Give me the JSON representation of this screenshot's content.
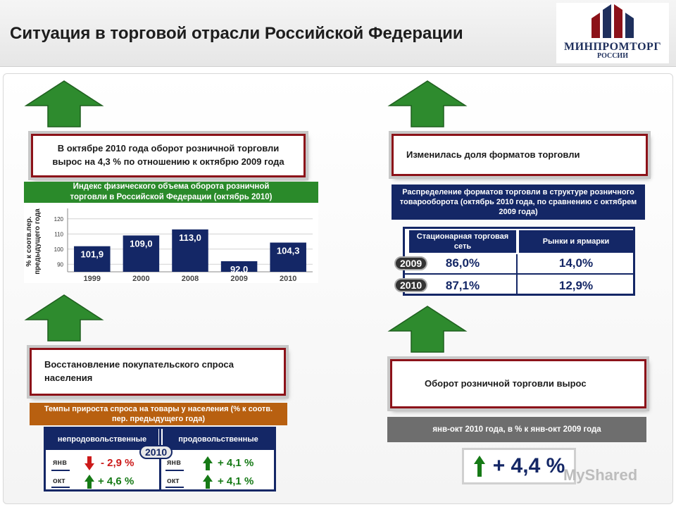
{
  "header": {
    "title": "Ситуация в торговой отрасли Российской Федерации",
    "logo_text": "МИНПРОМТОРГ",
    "logo_sub": "РОССИИ"
  },
  "colors": {
    "callout_border": "#8c1219",
    "navy": "#142766",
    "green_arrow": "#2e8b2e",
    "red": "#cc1a1a",
    "green": "#167a16"
  },
  "top_left": {
    "callout": "В октябре 2010 года оборот розничной торговли вырос на 4,3 % по отношению к октябрю 2009 года",
    "subheader": "Индекс физического объема оборота розничной торговли в Российской Федерации (октябрь 2010)"
  },
  "chart_data": {
    "type": "bar",
    "categories": [
      "1999",
      "2000",
      "2008",
      "2009",
      "2010"
    ],
    "values": [
      101.9,
      109.0,
      113.0,
      92.0,
      104.3
    ],
    "value_labels": [
      "101,9",
      "109,0",
      "113,0",
      "92,0",
      "104,3"
    ],
    "ylabel": "% к соотв.пер. предыдущего года",
    "yticks": [
      90,
      100,
      110,
      120
    ],
    "ylim": [
      85,
      125
    ],
    "grid": true
  },
  "top_right": {
    "callout": "Изменилась доля форматов торговли",
    "subheader": "Распределение форматов торговли в структуре розничного товарооборота (октябрь 2010 года, по сравнению с октябрем 2009 года)",
    "columns": [
      "Стационарная торговая сеть",
      "Рынки и ярмарки"
    ],
    "rows": [
      {
        "year": "2009",
        "values": [
          "86,0%",
          "14,0%"
        ]
      },
      {
        "year": "2010",
        "values": [
          "87,1%",
          "12,9%"
        ]
      }
    ]
  },
  "bottom_left": {
    "callout": "Восстановление покупательского спроса населения",
    "subheader": "Темпы прироста спроса на товары у населения (% к соотв. пер. предыдущего года)",
    "year": "2010",
    "columns": [
      "непродовольственные",
      "продовольственные"
    ],
    "rows": [
      {
        "label": "янв",
        "nonfood": "- 2,9 %",
        "nonfood_dir": "down",
        "food": "+ 4,1 %",
        "food_dir": "up"
      },
      {
        "label": "окт",
        "nonfood": "+ 4,6 %",
        "nonfood_dir": "up",
        "food": "+ 4,1 %",
        "food_dir": "up"
      }
    ]
  },
  "bottom_right": {
    "callout": "Оборот розничной торговли вырос",
    "subheader": "янв-окт 2010 года, в % к янв-окт 2009 года",
    "value": "+ 4,4 %"
  },
  "watermark": "MyShared"
}
